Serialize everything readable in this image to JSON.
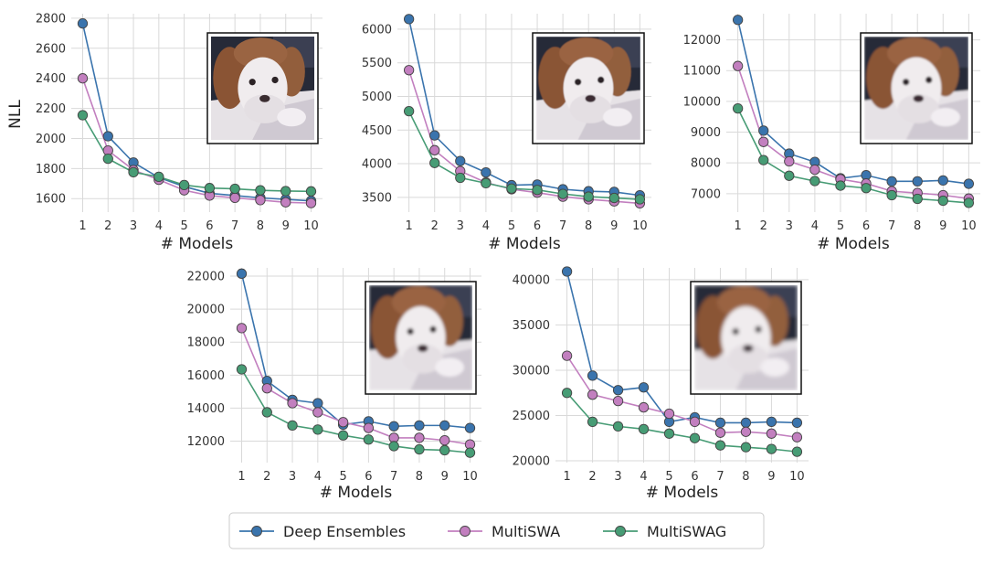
{
  "figure": {
    "colors": {
      "deep_ensembles": "#3a74ad",
      "multiswa": "#c27fbf",
      "multiswag": "#479c75",
      "grid": "#d9d9d9",
      "marker_edge": "#444444"
    },
    "thumbnail": {
      "description_icon": "puppy-thumbnail",
      "levels": [
        "sharp",
        "light-blur",
        "medium-blur",
        "strong-blur",
        "strongest-blur"
      ]
    },
    "legend": {
      "entries": [
        "Deep Ensembles",
        "MultiSWA",
        "MultiSWAG"
      ],
      "placement": "bottom-center"
    }
  },
  "chart_data": [
    {
      "type": "line",
      "xlabel": "# Models",
      "ylabel": "NLL",
      "x": [
        1,
        2,
        3,
        4,
        5,
        6,
        7,
        8,
        9,
        10
      ],
      "yticks": [
        1600,
        1800,
        2000,
        2200,
        2400,
        2600,
        2800
      ],
      "ylim": [
        1510,
        2830
      ],
      "grid": true,
      "series": [
        {
          "name": "Deep Ensembles",
          "values": [
            2765,
            2015,
            1840,
            1740,
            1680,
            1635,
            1620,
            1605,
            1595,
            1585
          ]
        },
        {
          "name": "MultiSWA",
          "values": [
            2400,
            1920,
            1790,
            1725,
            1655,
            1620,
            1605,
            1590,
            1575,
            1570
          ]
        },
        {
          "name": "MultiSWAG",
          "values": [
            2155,
            1865,
            1775,
            1745,
            1690,
            1670,
            1665,
            1655,
            1650,
            1648
          ]
        }
      ]
    },
    {
      "type": "line",
      "xlabel": "# Models",
      "ylabel": "",
      "x": [
        1,
        2,
        3,
        4,
        5,
        6,
        7,
        8,
        9,
        10
      ],
      "yticks": [
        3500,
        4000,
        4500,
        5000,
        5500,
        6000
      ],
      "ylim": [
        3280,
        6230
      ],
      "grid": true,
      "series": [
        {
          "name": "Deep Ensembles",
          "values": [
            6150,
            4420,
            4040,
            3870,
            3680,
            3690,
            3620,
            3590,
            3580,
            3530
          ]
        },
        {
          "name": "MultiSWA",
          "values": [
            5390,
            4200,
            3890,
            3720,
            3620,
            3570,
            3510,
            3470,
            3440,
            3410
          ]
        },
        {
          "name": "MultiSWAG",
          "values": [
            4780,
            4010,
            3790,
            3710,
            3630,
            3610,
            3550,
            3510,
            3490,
            3470
          ]
        }
      ]
    },
    {
      "type": "line",
      "xlabel": "# Models",
      "ylabel": "",
      "x": [
        1,
        2,
        3,
        4,
        5,
        6,
        7,
        8,
        9,
        10
      ],
      "yticks": [
        7000,
        8000,
        9000,
        10000,
        11000,
        12000
      ],
      "ylim": [
        6400,
        12850
      ],
      "grid": true,
      "series": [
        {
          "name": "Deep Ensembles",
          "values": [
            12650,
            9050,
            8300,
            8030,
            7500,
            7600,
            7400,
            7400,
            7430,
            7320
          ]
        },
        {
          "name": "MultiSWA",
          "values": [
            11150,
            8680,
            8050,
            7780,
            7470,
            7330,
            7080,
            7020,
            6950,
            6840
          ]
        },
        {
          "name": "MultiSWAG",
          "values": [
            9770,
            8090,
            7580,
            7410,
            7260,
            7180,
            6950,
            6830,
            6770,
            6700
          ]
        }
      ]
    },
    {
      "type": "line",
      "xlabel": "# Models",
      "ylabel": "",
      "x": [
        1,
        2,
        3,
        4,
        5,
        6,
        7,
        8,
        9,
        10
      ],
      "yticks": [
        12000,
        14000,
        16000,
        18000,
        20000,
        22000
      ],
      "ylim": [
        10700,
        22500
      ],
      "grid": true,
      "series": [
        {
          "name": "Deep Ensembles",
          "values": [
            22150,
            15650,
            14500,
            14300,
            13000,
            13200,
            12900,
            12950,
            12950,
            12800
          ]
        },
        {
          "name": "MultiSWA",
          "values": [
            18850,
            15200,
            14300,
            13750,
            13150,
            12800,
            12200,
            12200,
            12050,
            11800
          ]
        },
        {
          "name": "MultiSWAG",
          "values": [
            16350,
            13750,
            12950,
            12700,
            12350,
            12100,
            11700,
            11500,
            11450,
            11300
          ]
        }
      ]
    },
    {
      "type": "line",
      "xlabel": "# Models",
      "ylabel": "",
      "x": [
        1,
        2,
        3,
        4,
        5,
        6,
        7,
        8,
        9,
        10
      ],
      "yticks": [
        20000,
        25000,
        30000,
        35000,
        40000
      ],
      "ylim": [
        19800,
        41300
      ],
      "grid": true,
      "series": [
        {
          "name": "Deep Ensembles",
          "values": [
            40900,
            29400,
            27800,
            28100,
            24300,
            24800,
            24200,
            24200,
            24300,
            24200
          ]
        },
        {
          "name": "MultiSWA",
          "values": [
            31600,
            27300,
            26600,
            25900,
            25200,
            24300,
            23100,
            23200,
            23000,
            22600
          ]
        },
        {
          "name": "MultiSWAG",
          "values": [
            27500,
            24300,
            23800,
            23500,
            23000,
            22500,
            21700,
            21500,
            21300,
            21000
          ]
        }
      ]
    }
  ]
}
